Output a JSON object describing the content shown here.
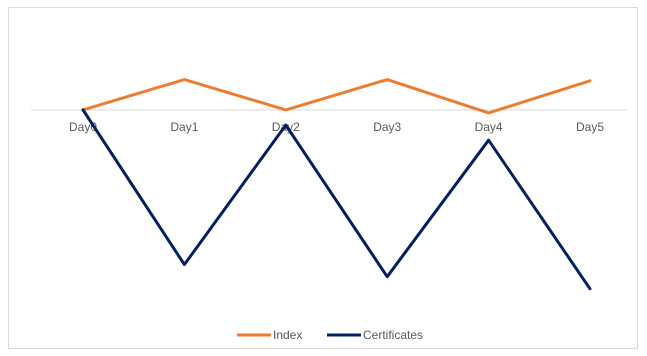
{
  "chart_data": {
    "type": "line",
    "categories": [
      "Day0",
      "Day1",
      "Day2",
      "Day3",
      "Day4",
      "Day5"
    ],
    "series": [
      {
        "name": "Index",
        "color": "#ED7D31",
        "values": [
          0,
          0.5,
          0,
          0.5,
          -0.05,
          0.48
        ]
      },
      {
        "name": "Certificates",
        "color": "#002060",
        "values": [
          0,
          -2.55,
          -0.25,
          -2.75,
          -0.5,
          -2.95
        ]
      }
    ],
    "ylim": [
      -3.25,
      1.35
    ],
    "grid": false,
    "legend": "bottom",
    "title": "",
    "xlabel": "",
    "ylabel": ""
  }
}
